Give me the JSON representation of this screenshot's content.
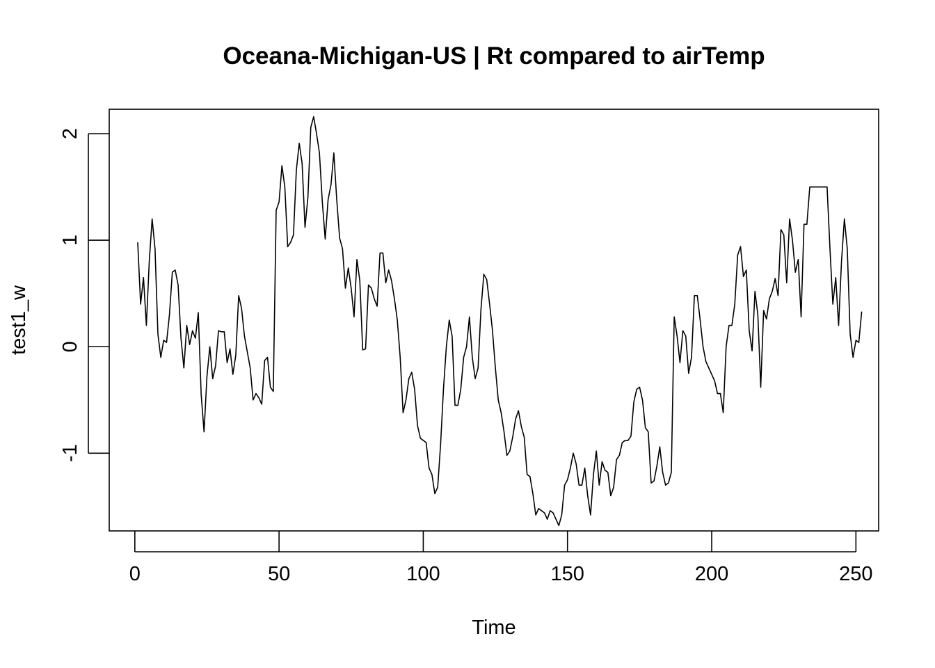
{
  "chart_data": {
    "type": "line",
    "title": "Oceana-Michigan-US | Rt compared to airTemp",
    "xlabel": "Time",
    "ylabel": "test1_w",
    "xlim": [
      -8.88,
      257.88
    ],
    "ylim": [
      -1.73,
      2.23
    ],
    "x_ticks": [
      0,
      50,
      100,
      150,
      200,
      250
    ],
    "x_tick_labels": [
      "0",
      "50",
      "100",
      "150",
      "200",
      "250"
    ],
    "y_ticks": [
      -1,
      0,
      1,
      2
    ],
    "y_tick_labels": [
      "-1",
      "0",
      "1",
      "2"
    ],
    "grid": false,
    "legend": "none",
    "line_color": "#000000",
    "series": [
      {
        "x_start": 1,
        "x_step": 1,
        "values": [
          0.98,
          0.4,
          0.65,
          0.2,
          0.8,
          1.2,
          0.92,
          0.12,
          -0.1,
          0.06,
          0.04,
          0.3,
          0.7,
          0.72,
          0.58,
          0.08,
          -0.2,
          0.2,
          0.02,
          0.15,
          0.08,
          0.32,
          -0.45,
          -0.8,
          -0.28,
          0.0,
          -0.3,
          -0.18,
          0.15,
          0.14,
          0.14,
          -0.15,
          -0.02,
          -0.26,
          -0.08,
          0.48,
          0.36,
          0.1,
          -0.05,
          -0.2,
          -0.5,
          -0.44,
          -0.48,
          -0.54,
          -0.13,
          -0.1,
          -0.38,
          -0.42,
          1.28,
          1.36,
          1.7,
          1.5,
          0.94,
          0.98,
          1.05,
          1.66,
          1.91,
          1.72,
          1.12,
          1.4,
          2.06,
          2.16,
          2.0,
          1.82,
          1.36,
          1.01,
          1.38,
          1.52,
          1.82,
          1.38,
          1.02,
          0.92,
          0.55,
          0.74,
          0.55,
          0.28,
          0.82,
          0.62,
          -0.03,
          -0.02,
          0.58,
          0.55,
          0.45,
          0.38,
          0.88,
          0.88,
          0.6,
          0.72,
          0.62,
          0.45,
          0.25,
          -0.1,
          -0.62,
          -0.5,
          -0.3,
          -0.24,
          -0.4,
          -0.74,
          -0.86,
          -0.88,
          -0.9,
          -1.14,
          -1.2,
          -1.38,
          -1.32,
          -0.92,
          -0.4,
          0.0,
          0.25,
          0.1,
          -0.55,
          -0.55,
          -0.4,
          -0.1,
          0.0,
          0.28,
          -0.1,
          -0.3,
          -0.2,
          0.35,
          0.68,
          0.63,
          0.4,
          0.15,
          -0.2,
          -0.5,
          -0.62,
          -0.8,
          -1.02,
          -0.98,
          -0.85,
          -0.68,
          -0.6,
          -0.75,
          -0.85,
          -1.2,
          -1.22,
          -1.38,
          -1.58,
          -1.52,
          -1.54,
          -1.56,
          -1.62,
          -1.54,
          -1.56,
          -1.62,
          -1.68,
          -1.58,
          -1.3,
          -1.25,
          -1.14,
          -1.0,
          -1.1,
          -1.3,
          -1.3,
          -1.14,
          -1.4,
          -1.58,
          -1.2,
          -0.98,
          -1.3,
          -1.08,
          -1.16,
          -1.18,
          -1.4,
          -1.32,
          -1.06,
          -1.02,
          -0.9,
          -0.88,
          -0.88,
          -0.84,
          -0.52,
          -0.4,
          -0.38,
          -0.5,
          -0.76,
          -0.8,
          -1.28,
          -1.26,
          -1.12,
          -0.94,
          -1.18,
          -1.3,
          -1.28,
          -1.18,
          0.28,
          0.1,
          -0.15,
          0.15,
          0.1,
          -0.25,
          -0.1,
          0.48,
          0.48,
          0.25,
          0.0,
          -0.14,
          -0.2,
          -0.26,
          -0.32,
          -0.44,
          -0.44,
          -0.62,
          0.0,
          0.2,
          0.2,
          0.4,
          0.86,
          0.94,
          0.66,
          0.72,
          0.15,
          -0.04,
          0.52,
          0.3,
          -0.38,
          0.34,
          0.26,
          0.45,
          0.52,
          0.64,
          0.48,
          1.1,
          1.05,
          0.6,
          1.2,
          1.0,
          0.7,
          0.82,
          0.28,
          1.15,
          1.15,
          1.5,
          1.5,
          1.5,
          1.5,
          1.5,
          1.5,
          1.5,
          0.92,
          0.4,
          0.65,
          0.2,
          0.8,
          1.2,
          0.92,
          0.12,
          -0.1,
          0.06,
          0.04,
          0.33
        ]
      }
    ]
  }
}
